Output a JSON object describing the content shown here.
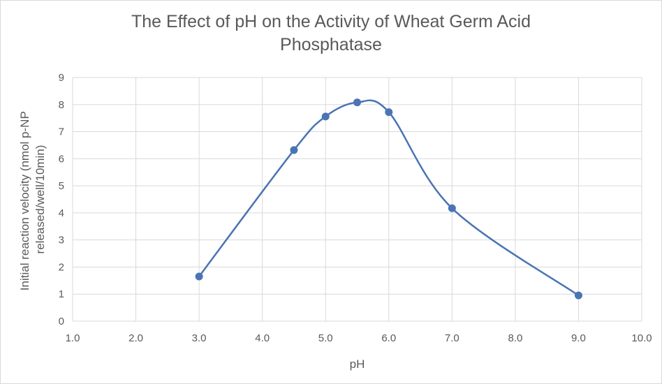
{
  "chart_data": {
    "type": "scatter",
    "title_lines": [
      "The Effect of pH on the Activity of Wheat Germ Acid",
      "Phosphatase"
    ],
    "xlabel": "pH",
    "ylabel_lines": [
      "Initial reaction velocity (nmol p-NP",
      "released/well/10min)"
    ],
    "xlim": [
      1.0,
      10.0
    ],
    "ylim": [
      0,
      9
    ],
    "x_ticks": [
      "1.0",
      "2.0",
      "3.0",
      "4.0",
      "5.0",
      "6.0",
      "7.0",
      "8.0",
      "9.0",
      "10.0"
    ],
    "y_ticks": [
      "0",
      "1",
      "2",
      "3",
      "4",
      "5",
      "6",
      "7",
      "8",
      "9"
    ],
    "grid": true,
    "smooth_line": true,
    "series": [
      {
        "x": [
          3.0,
          4.5,
          5.0,
          5.5,
          6.0,
          7.0,
          9.0
        ],
        "y": [
          1.65,
          6.32,
          7.56,
          8.08,
          7.72,
          4.17,
          0.95
        ],
        "color": "#4a74b4"
      }
    ]
  }
}
